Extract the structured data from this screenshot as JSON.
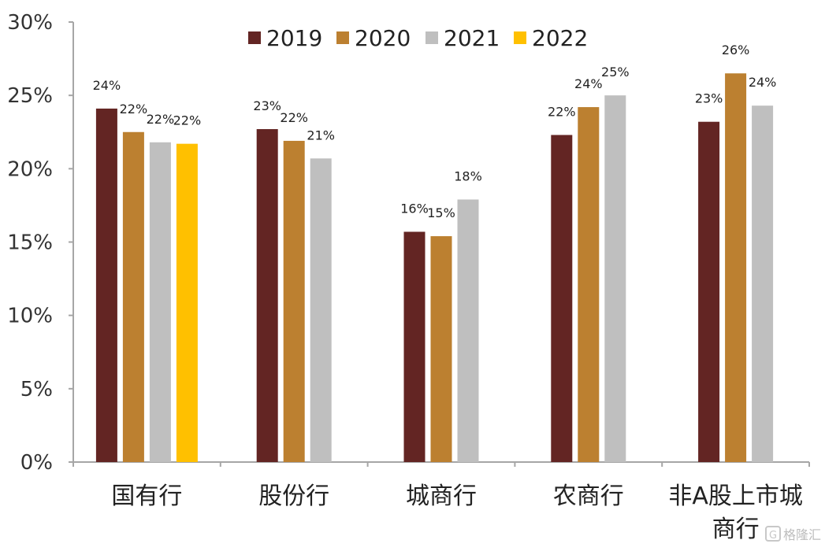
{
  "chart_data": {
    "type": "bar",
    "categories": [
      "国有行",
      "股份行",
      "城商行",
      "农商行",
      "非A股上市城商行"
    ],
    "category_lines": [
      [
        "国有行"
      ],
      [
        "股份行"
      ],
      [
        "城商行"
      ],
      [
        "农商行"
      ],
      [
        "非A股上市城",
        "商行"
      ]
    ],
    "series": [
      {
        "name": "2019",
        "color": "#632523",
        "values": [
          24.1,
          22.7,
          15.7,
          22.3,
          23.2
        ],
        "labels": [
          "24%",
          "23%",
          "16%",
          "22%",
          "23%"
        ]
      },
      {
        "name": "2020",
        "color": "#BC8030",
        "values": [
          22.5,
          21.9,
          15.4,
          24.2,
          26.5
        ],
        "labels": [
          "22%",
          "22%",
          "15%",
          "24%",
          "26%"
        ]
      },
      {
        "name": "2021",
        "color": "#BFBFBF",
        "values": [
          21.8,
          20.7,
          17.9,
          25.0,
          24.3
        ],
        "labels": [
          "22%",
          "21%",
          "18%",
          "25%",
          "24%"
        ]
      },
      {
        "name": "2022",
        "color": "#FFC000",
        "values": [
          21.7,
          null,
          null,
          null,
          null
        ],
        "labels": [
          "22%",
          null,
          null,
          null,
          null
        ]
      }
    ],
    "ylim": [
      0,
      30
    ],
    "yticks": [
      0,
      5,
      10,
      15,
      20,
      25,
      30
    ],
    "ytick_labels": [
      "0%",
      "5%",
      "10%",
      "15%",
      "20%",
      "25%",
      "30%"
    ],
    "legend_position": "top",
    "grid": false,
    "axis_color": "#A6A6A6"
  },
  "watermark": {
    "text": "格隆汇",
    "icon": "logo-g-icon"
  }
}
